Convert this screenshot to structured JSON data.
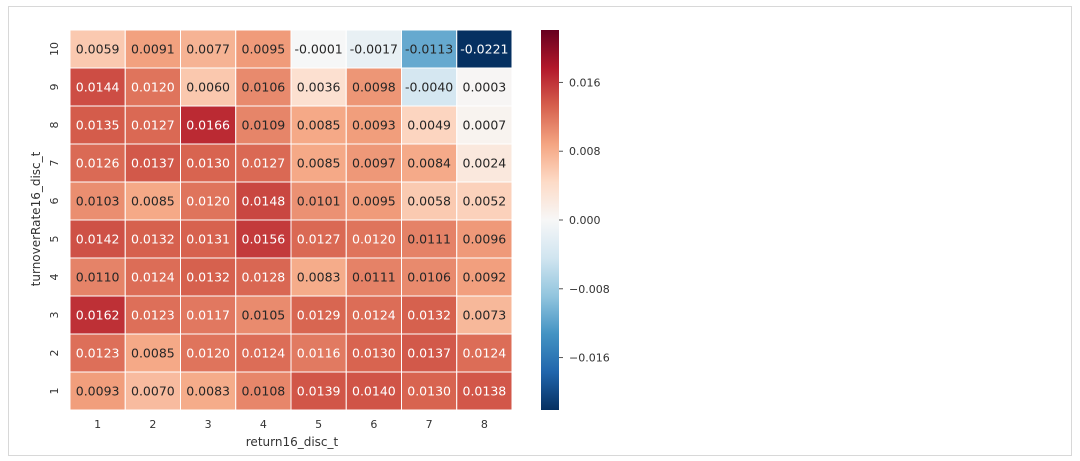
{
  "colors": {
    "cmap": "RdBu_r",
    "cell_border": "#ffffff"
  },
  "chart_data": {
    "type": "heatmap",
    "xlabel": "return16_disc_t",
    "ylabel": "turnoverRate16_disc_t",
    "x_categories": [
      "1",
      "2",
      "3",
      "4",
      "5",
      "6",
      "7",
      "8"
    ],
    "y_categories": [
      "10",
      "9",
      "8",
      "7",
      "6",
      "5",
      "4",
      "3",
      "2",
      "1"
    ],
    "values": [
      [
        0.0059,
        0.0091,
        0.0077,
        0.0095,
        -0.0001,
        -0.0017,
        -0.0113,
        -0.0221
      ],
      [
        0.0144,
        0.012,
        0.006,
        0.0106,
        0.0036,
        0.0098,
        -0.004,
        0.0003
      ],
      [
        0.0135,
        0.0127,
        0.0166,
        0.0109,
        0.0085,
        0.0093,
        0.0049,
        0.0007
      ],
      [
        0.0126,
        0.0137,
        0.013,
        0.0127,
        0.0085,
        0.0097,
        0.0084,
        0.0024
      ],
      [
        0.0103,
        0.0085,
        0.012,
        0.0148,
        0.0101,
        0.0095,
        0.0058,
        0.0052
      ],
      [
        0.0142,
        0.0132,
        0.0131,
        0.0156,
        0.0127,
        0.012,
        0.0111,
        0.0096
      ],
      [
        0.011,
        0.0124,
        0.0132,
        0.0128,
        0.0083,
        0.0111,
        0.0106,
        0.0092
      ],
      [
        0.0162,
        0.0123,
        0.0117,
        0.0105,
        0.0129,
        0.0124,
        0.0132,
        0.0073
      ],
      [
        0.0123,
        0.0085,
        0.012,
        0.0124,
        0.0116,
        0.013,
        0.0137,
        0.0124
      ],
      [
        0.0093,
        0.007,
        0.0083,
        0.0108,
        0.0139,
        0.014,
        0.013,
        0.0138
      ]
    ],
    "vmin": -0.0221,
    "vmax": 0.0221,
    "colorbar_ticks": [
      {
        "value": 0.016,
        "label": "0.016"
      },
      {
        "value": 0.008,
        "label": "0.008"
      },
      {
        "value": 0.0,
        "label": "0.000"
      },
      {
        "value": -0.008,
        "label": "−0.008"
      },
      {
        "value": -0.016,
        "label": "−0.016"
      }
    ]
  }
}
